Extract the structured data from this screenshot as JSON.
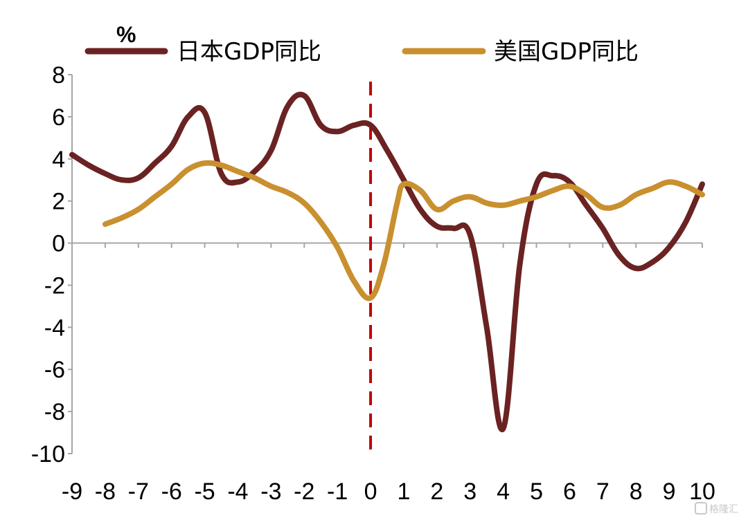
{
  "chart_data": {
    "type": "line",
    "unit_label": "%",
    "x_ticks": [
      "-9",
      "-8",
      "-7",
      "-6",
      "-5",
      "-4",
      "-3",
      "-2",
      "-1",
      "0",
      "1",
      "2",
      "3",
      "4",
      "5",
      "6",
      "7",
      "8",
      "9",
      "10"
    ],
    "y_ticks": [
      "8",
      "6",
      "4",
      "2",
      "0",
      "-2",
      "-4",
      "-6",
      "-8",
      "-10"
    ],
    "ylim": [
      -10,
      8
    ],
    "xlim": [
      -9,
      10
    ],
    "reference_line_x": 0,
    "legend_position": "top",
    "series": [
      {
        "name": "日本GDP同比",
        "color": "#6b2222",
        "points": [
          [
            -9,
            4.2
          ],
          [
            -8.5,
            3.7
          ],
          [
            -8,
            3.3
          ],
          [
            -7.5,
            3.0
          ],
          [
            -7,
            3.1
          ],
          [
            -6.5,
            3.8
          ],
          [
            -6,
            4.6
          ],
          [
            -5.5,
            6.0
          ],
          [
            -5,
            6.2
          ],
          [
            -4.5,
            3.3
          ],
          [
            -4,
            2.9
          ],
          [
            -3.5,
            3.4
          ],
          [
            -3,
            4.4
          ],
          [
            -2.5,
            6.5
          ],
          [
            -2,
            7.0
          ],
          [
            -1.5,
            5.6
          ],
          [
            -1,
            5.3
          ],
          [
            -0.5,
            5.6
          ],
          [
            0,
            5.6
          ],
          [
            0.5,
            4.4
          ],
          [
            1,
            3.0
          ],
          [
            1.5,
            1.6
          ],
          [
            2,
            0.8
          ],
          [
            2.5,
            0.7
          ],
          [
            3,
            0.4
          ],
          [
            3.5,
            -4.0
          ],
          [
            4,
            -8.8
          ],
          [
            4.5,
            -1.0
          ],
          [
            5,
            2.8
          ],
          [
            5.5,
            3.2
          ],
          [
            6,
            2.9
          ],
          [
            6.5,
            1.8
          ],
          [
            7,
            0.7
          ],
          [
            7.5,
            -0.6
          ],
          [
            8,
            -1.2
          ],
          [
            8.5,
            -0.9
          ],
          [
            9,
            -0.2
          ],
          [
            9.5,
            1.0
          ],
          [
            10,
            2.8
          ]
        ]
      },
      {
        "name": "美国GDP同比",
        "color": "#c9902f",
        "points": [
          [
            -8,
            0.9
          ],
          [
            -7.5,
            1.2
          ],
          [
            -7,
            1.6
          ],
          [
            -6.5,
            2.2
          ],
          [
            -6,
            2.8
          ],
          [
            -5.5,
            3.5
          ],
          [
            -5,
            3.8
          ],
          [
            -4.5,
            3.7
          ],
          [
            -4,
            3.4
          ],
          [
            -3.5,
            3.1
          ],
          [
            -3,
            2.7
          ],
          [
            -2.5,
            2.4
          ],
          [
            -2,
            1.9
          ],
          [
            -1.5,
            1.0
          ],
          [
            -1,
            -0.2
          ],
          [
            -0.5,
            -1.8
          ],
          [
            0,
            -2.6
          ],
          [
            0.4,
            -1.0
          ],
          [
            0.8,
            1.9
          ],
          [
            1,
            2.8
          ],
          [
            1.5,
            2.5
          ],
          [
            2,
            1.6
          ],
          [
            2.5,
            2.0
          ],
          [
            3,
            2.2
          ],
          [
            3.5,
            1.9
          ],
          [
            4,
            1.8
          ],
          [
            4.5,
            2.0
          ],
          [
            5,
            2.2
          ],
          [
            5.5,
            2.5
          ],
          [
            6,
            2.7
          ],
          [
            6.5,
            2.3
          ],
          [
            7,
            1.7
          ],
          [
            7.5,
            1.8
          ],
          [
            8,
            2.3
          ],
          [
            8.5,
            2.6
          ],
          [
            9,
            2.9
          ],
          [
            9.5,
            2.7
          ],
          [
            10,
            2.3
          ]
        ]
      }
    ]
  },
  "watermark": "格隆汇",
  "watermark_icon": "gelonghui-logo-icon"
}
